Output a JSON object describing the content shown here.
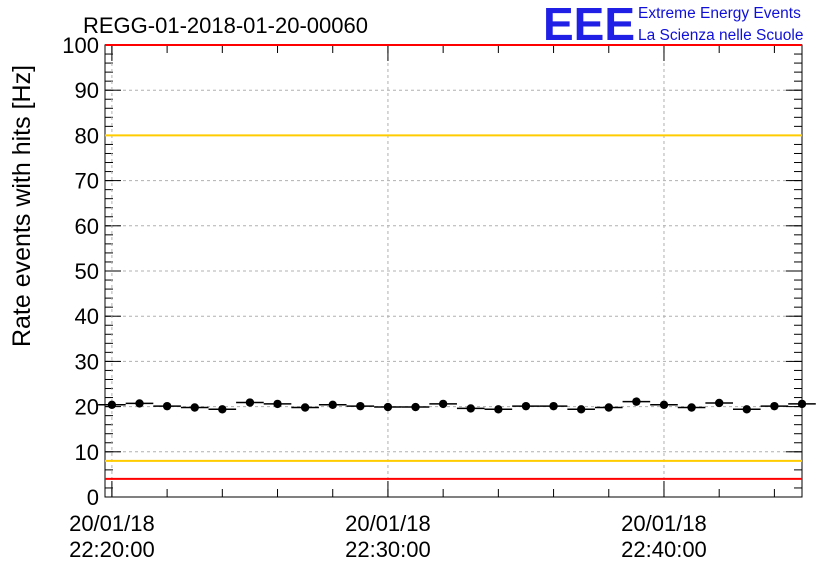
{
  "chart_data": {
    "type": "scatter",
    "title": "REGG-01-2018-01-20-00060",
    "ylabel": "Rate events with hits [Hz]",
    "xlabel": "",
    "ylim": [
      0,
      100
    ],
    "yticks": [
      0,
      10,
      20,
      30,
      40,
      50,
      60,
      70,
      80,
      90,
      100
    ],
    "xlim": [
      "20/01/18 22:19:45",
      "20/01/18 22:45:00"
    ],
    "xticks": [
      {
        "date": "20/01/18",
        "time": "22:20:00"
      },
      {
        "date": "20/01/18",
        "time": "22:30:00"
      },
      {
        "date": "20/01/18",
        "time": "22:40:00"
      }
    ],
    "grid": true,
    "bin_minutes": 1,
    "series": [
      {
        "x": [
          "22:20:00",
          "22:21:00",
          "22:22:00",
          "22:23:00",
          "22:24:00",
          "22:25:00",
          "22:26:00",
          "22:27:00",
          "22:28:00",
          "22:29:00",
          "22:30:00",
          "22:31:00",
          "22:32:00",
          "22:33:00",
          "22:34:00",
          "22:35:00",
          "22:36:00",
          "22:37:00",
          "22:38:00",
          "22:39:00",
          "22:40:00",
          "22:41:00",
          "22:42:00",
          "22:43:00",
          "22:44:00",
          "22:45:00"
        ],
        "values": [
          20.4,
          20.7,
          20.1,
          19.8,
          19.4,
          20.9,
          20.6,
          19.8,
          20.4,
          20.1,
          19.9,
          19.9,
          20.6,
          19.6,
          19.4,
          20.1,
          20.1,
          19.4,
          19.8,
          21.1,
          20.4,
          19.8,
          20.8,
          19.4,
          20.1,
          20.6
        ],
        "color": "#000000"
      }
    ],
    "reference_lines": [
      {
        "value": 100,
        "color": "#ff0000"
      },
      {
        "value": 80,
        "color": "#ffcc00"
      },
      {
        "value": 8,
        "color": "#ffcc00"
      },
      {
        "value": 4,
        "color": "#ff0000"
      }
    ]
  },
  "logo": {
    "mark": "EEE",
    "line1": "Extreme Energy Events",
    "line2": "La Scienza nelle Scuole",
    "color": "#1f1fe6"
  }
}
